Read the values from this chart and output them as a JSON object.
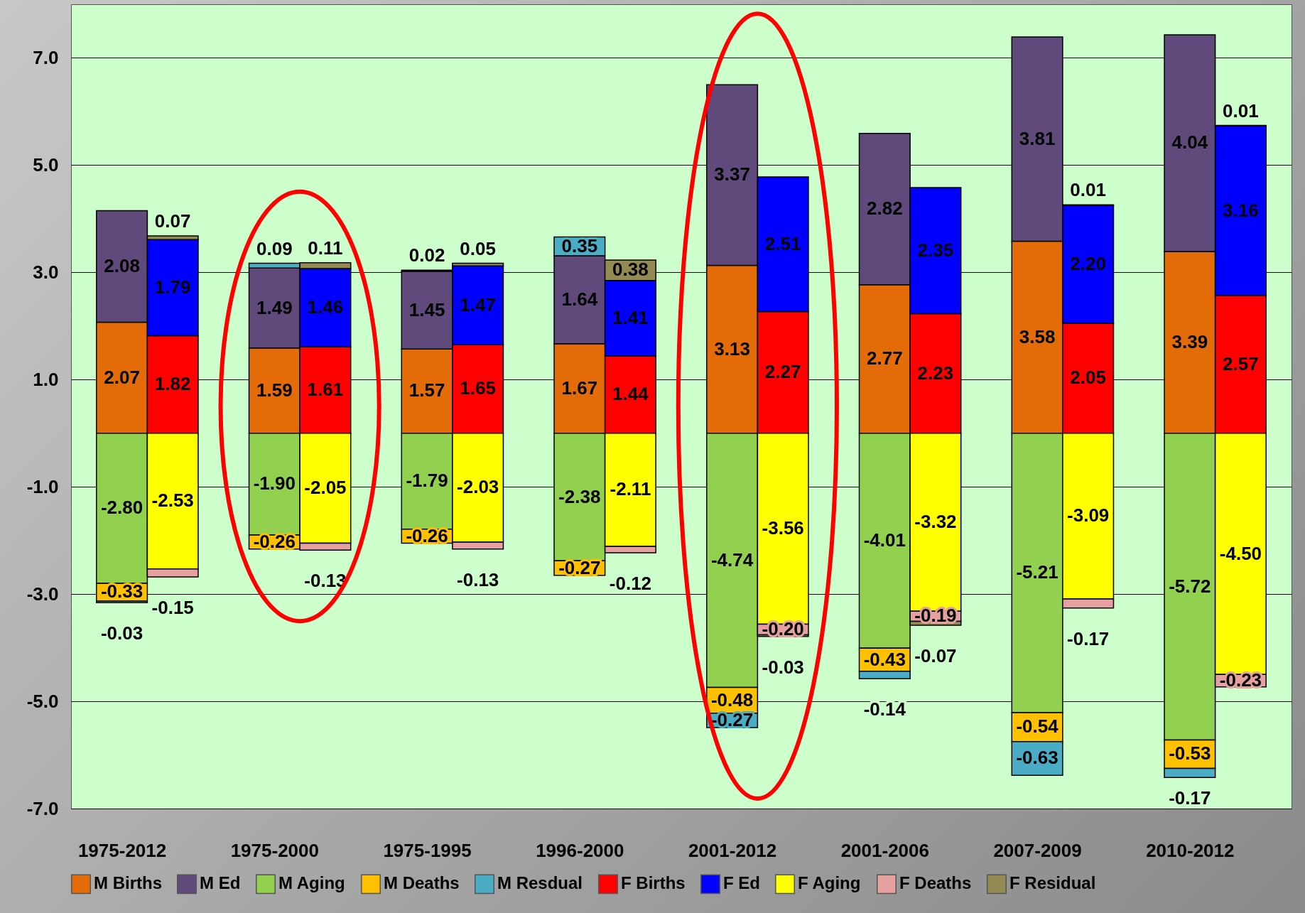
{
  "chart_data": {
    "type": "bar",
    "stacked": true,
    "categories": [
      "1975-2012",
      null,
      "1975-2000",
      null,
      "1975-1995",
      null,
      "1996-2000",
      null,
      "2001-2012",
      null,
      "2001-2006",
      null,
      "2007-2009",
      null,
      "2010-2012",
      null
    ],
    "series": [
      {
        "name": "M Births",
        "color": "#e36c09",
        "values": [
          2.07,
          null,
          1.59,
          null,
          1.57,
          null,
          1.67,
          null,
          3.13,
          null,
          2.77,
          null,
          3.58,
          null,
          3.39,
          null
        ],
        "value_labels": [
          "2.07",
          null,
          "1.59",
          null,
          "1.57",
          null,
          "1.67",
          null,
          "3.13",
          null,
          "2.77",
          null,
          "3.58",
          null,
          "3.39",
          null
        ]
      },
      {
        "name": "M Ed",
        "color": "#604a7b",
        "values": [
          2.08,
          null,
          1.49,
          null,
          1.45,
          null,
          1.64,
          null,
          3.37,
          null,
          2.82,
          null,
          3.81,
          null,
          4.04,
          null
        ],
        "value_labels": [
          "2.08",
          null,
          "1.49",
          null,
          "1.45",
          null,
          "1.64",
          null,
          "3.37",
          null,
          "2.82",
          null,
          "3.81",
          null,
          "4.04",
          null
        ]
      },
      {
        "name": "M Aging",
        "color": "#92d050",
        "values": [
          -2.8,
          null,
          -1.9,
          null,
          -1.79,
          null,
          -2.38,
          null,
          -4.74,
          null,
          -4.01,
          null,
          -5.21,
          null,
          -5.72,
          null
        ],
        "value_labels": [
          "-2.80",
          null,
          "-1.90",
          null,
          "-1.79",
          null,
          "-2.38",
          null,
          "-4.74",
          null,
          "-4.01",
          null,
          "-5.21",
          null,
          "-5.72",
          null
        ]
      },
      {
        "name": "M Deaths",
        "color": "#ffc000",
        "values": [
          -0.33,
          null,
          -0.26,
          null,
          -0.26,
          null,
          -0.27,
          null,
          -0.48,
          null,
          -0.43,
          null,
          -0.54,
          null,
          -0.53,
          null
        ],
        "value_labels": [
          "-0.33",
          null,
          "-0.26",
          null,
          "-0.26",
          null,
          "-0.27",
          null,
          "-0.48",
          null,
          "-0.43",
          null,
          "-0.54",
          null,
          "-0.53",
          null
        ]
      },
      {
        "name": "M Resdual",
        "color": "#4bacc6",
        "values": [
          -0.03,
          null,
          0.09,
          null,
          0.02,
          null,
          0.35,
          null,
          -0.27,
          null,
          -0.14,
          null,
          -0.63,
          null,
          -0.17,
          null
        ],
        "value_labels": [
          "-0.03",
          null,
          "0.09",
          null,
          "0.02",
          null,
          "0.35",
          null,
          "-0.27",
          null,
          "-0.14",
          null,
          "-0.63",
          null,
          "-0.17",
          null
        ]
      },
      {
        "name": "F Births",
        "color": "#ff0000",
        "values": [
          null,
          1.82,
          null,
          1.61,
          null,
          1.65,
          null,
          1.44,
          null,
          2.27,
          null,
          2.23,
          null,
          2.05,
          null,
          2.57
        ],
        "value_labels": [
          null,
          "1.82",
          null,
          "1.61",
          null,
          "1.65",
          null,
          "1.44",
          null,
          "2.27",
          null,
          "2.23",
          null,
          "2.05",
          null,
          "2.57"
        ]
      },
      {
        "name": "F Ed",
        "color": "#0000ff",
        "values": [
          null,
          1.79,
          null,
          1.46,
          null,
          1.47,
          null,
          1.41,
          null,
          2.51,
          null,
          2.35,
          null,
          2.2,
          null,
          3.16
        ],
        "value_labels": [
          null,
          "1.79",
          null,
          "1.46",
          null,
          "1.47",
          null,
          "1.41",
          null,
          "2.51",
          null,
          "2.35",
          null,
          "2.20",
          null,
          "3.16"
        ]
      },
      {
        "name": "F Aging",
        "color": "#ffff00",
        "values": [
          null,
          -2.53,
          null,
          -2.05,
          null,
          -2.03,
          null,
          -2.11,
          null,
          -3.56,
          null,
          -3.32,
          null,
          -3.09,
          null,
          -4.5
        ],
        "value_labels": [
          null,
          "-2.53",
          null,
          "-2.05",
          null,
          "-2.03",
          null,
          "-2.11",
          null,
          "-3.56",
          null,
          "-3.32",
          null,
          "-3.09",
          null,
          "-4.50"
        ]
      },
      {
        "name": "F Deaths",
        "color": "#e6a0a0",
        "values": [
          null,
          -0.15,
          null,
          -0.13,
          null,
          -0.13,
          null,
          -0.12,
          null,
          -0.2,
          null,
          -0.19,
          null,
          -0.17,
          null,
          -0.23
        ],
        "value_labels": [
          null,
          "-0.15",
          null,
          "-0.13",
          null,
          "-0.13",
          null,
          "-0.12",
          null,
          "-0.20",
          null,
          "-0.19",
          null,
          "-0.17",
          null,
          "-0.23"
        ]
      },
      {
        "name": "F Residual",
        "color": "#948a54",
        "values": [
          null,
          0.07,
          null,
          0.11,
          null,
          0.05,
          null,
          0.38,
          null,
          -0.03,
          null,
          -0.07,
          null,
          0.01,
          null,
          0.01
        ],
        "value_labels": [
          null,
          "0.07",
          null,
          "0.11",
          null,
          "0.05",
          null,
          "0.38",
          null,
          "-0.03",
          null,
          "-0.07",
          null,
          "0.01",
          null,
          "0.01"
        ]
      }
    ],
    "ylim": [
      -7,
      8
    ],
    "yticks": [
      {
        "value": -7,
        "label": "-7.0"
      },
      {
        "value": -5,
        "label": "-5.0"
      },
      {
        "value": -3,
        "label": "-3.0"
      },
      {
        "value": -1,
        "label": "-1.0"
      },
      {
        "value": 1,
        "label": "1.0"
      },
      {
        "value": 3,
        "label": "3.0"
      },
      {
        "value": 5,
        "label": "5.0"
      },
      {
        "value": 7,
        "label": "7.0"
      }
    ],
    "grid": "y",
    "legend": "bottom"
  }
}
